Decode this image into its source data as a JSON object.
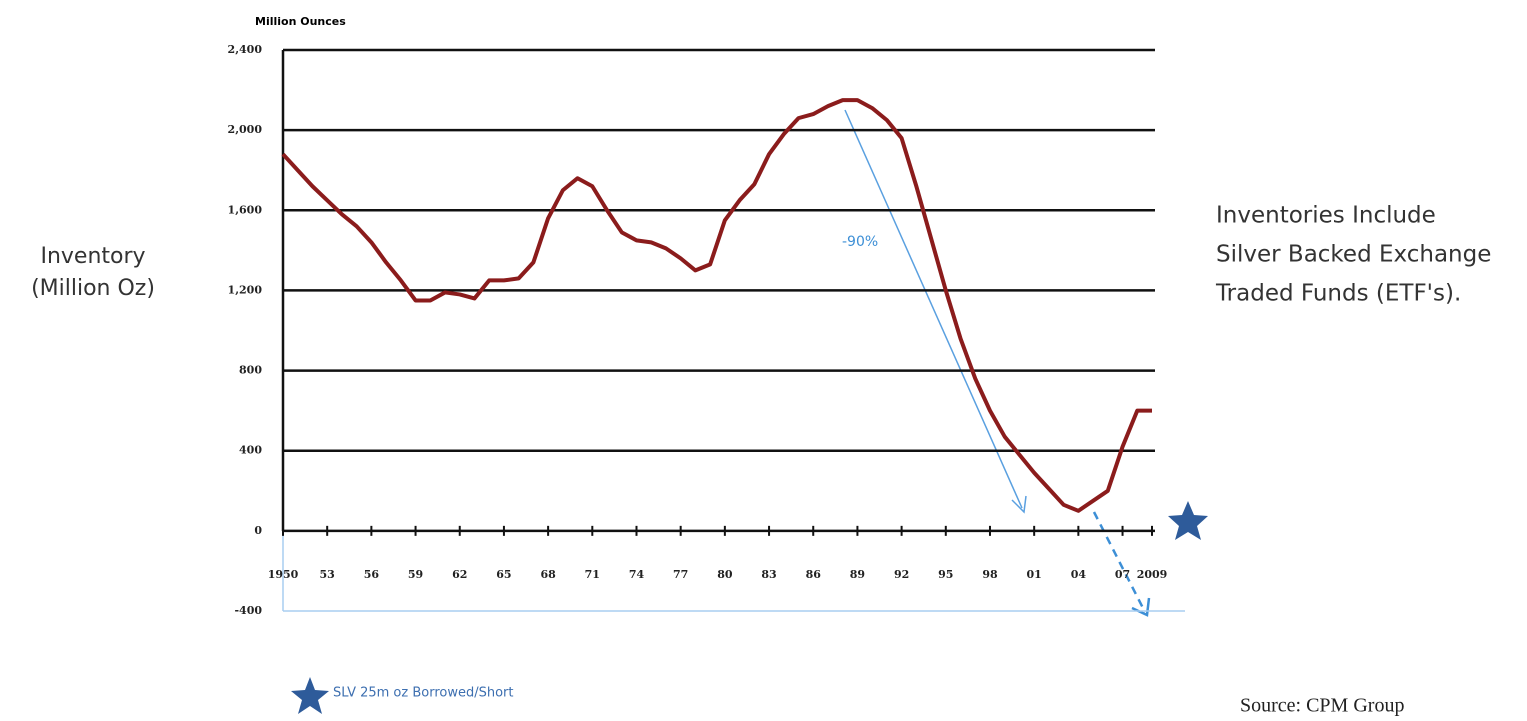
{
  "chart_data": {
    "type": "line",
    "y_unit_label": "Million Ounces",
    "ylabel": [
      "Inventory",
      "(Million Oz)"
    ],
    "annotations": [
      "-90%"
    ],
    "note": [
      "Inventories Include",
      "Silver Backed Exchange",
      "Traded Funds (ETF's)."
    ],
    "legend_note": "SLV 25m oz Borrowed/Short",
    "source": "Source: CPM Group",
    "x": [
      1950,
      1951,
      1952,
      1953,
      1954,
      1955,
      1956,
      1957,
      1958,
      1959,
      1960,
      1961,
      1962,
      1963,
      1964,
      1965,
      1966,
      1967,
      1968,
      1969,
      1970,
      1971,
      1972,
      1973,
      1974,
      1975,
      1976,
      1977,
      1978,
      1979,
      1980,
      1981,
      1982,
      1983,
      1984,
      1985,
      1986,
      1987,
      1988,
      1989,
      1990,
      1991,
      1992,
      1993,
      1994,
      1995,
      1996,
      1997,
      1998,
      1999,
      2000,
      2001,
      2002,
      2003,
      2004,
      2005,
      2006,
      2007,
      2008,
      2009
    ],
    "series": [
      {
        "name": "Inventory",
        "color": "#8b1c1c",
        "values": [
          1880,
          1800,
          1720,
          1650,
          1580,
          1520,
          1440,
          1340,
          1250,
          1150,
          1150,
          1190,
          1180,
          1160,
          1250,
          1250,
          1260,
          1340,
          1560,
          1700,
          1760,
          1720,
          1600,
          1490,
          1450,
          1440,
          1410,
          1360,
          1300,
          1330,
          1550,
          1650,
          1730,
          1880,
          1980,
          2060,
          2080,
          2120,
          2150,
          2150,
          2110,
          2050,
          1960,
          1720,
          1460,
          1200,
          960,
          760,
          600,
          470,
          380,
          290,
          210,
          130,
          100,
          150,
          200,
          420,
          600,
          600
        ]
      }
    ],
    "xlim": [
      1950,
      2009
    ],
    "xticks": [
      {
        "value": 1950,
        "label": "1950"
      },
      {
        "value": 1953,
        "label": "53"
      },
      {
        "value": 1956,
        "label": "56"
      },
      {
        "value": 1959,
        "label": "59"
      },
      {
        "value": 1962,
        "label": "62"
      },
      {
        "value": 1965,
        "label": "65"
      },
      {
        "value": 1968,
        "label": "68"
      },
      {
        "value": 1971,
        "label": "71"
      },
      {
        "value": 1974,
        "label": "74"
      },
      {
        "value": 1977,
        "label": "77"
      },
      {
        "value": 1980,
        "label": "80"
      },
      {
        "value": 1983,
        "label": "83"
      },
      {
        "value": 1986,
        "label": "86"
      },
      {
        "value": 1989,
        "label": "89"
      },
      {
        "value": 1992,
        "label": "92"
      },
      {
        "value": 1995,
        "label": "95"
      },
      {
        "value": 1998,
        "label": "98"
      },
      {
        "value": 2001,
        "label": "01"
      },
      {
        "value": 2004,
        "label": "04"
      },
      {
        "value": 2007,
        "label": "07"
      },
      {
        "value": 2009,
        "label": "2009"
      }
    ],
    "ylim": [
      -400,
      2400
    ],
    "yticks": [
      -400,
      0,
      400,
      800,
      {
        "value": 1200,
        "label": "1,200"
      },
      {
        "value": 1600,
        "label": "1,600"
      },
      {
        "value": 2000,
        "label": "2,000"
      },
      {
        "value": 2400,
        "label": "2,400"
      }
    ],
    "grid": true
  }
}
